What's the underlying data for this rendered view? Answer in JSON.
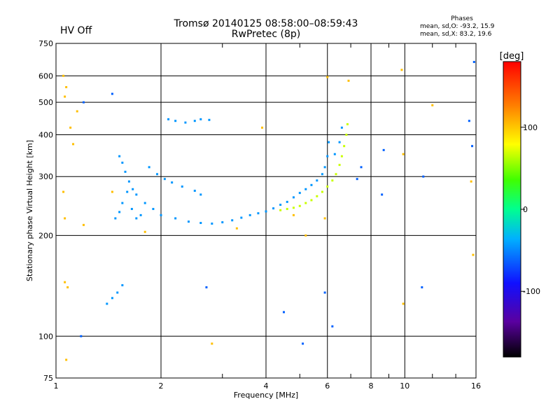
{
  "status": {
    "text": "HV Off",
    "color": "#cc0000"
  },
  "header": {
    "title": "Tromsø 20140125 08:58:00–08:59:43",
    "subtitle": "RwPretec (8p)"
  },
  "phases_box": {
    "title": "Phases",
    "line_o": "mean, sd,O: -93.2, 15.9",
    "line_x": "mean, sd,X: 83.2, 19.6"
  },
  "chart_data": {
    "type": "scatter",
    "xlabel": "Frequency [MHz]",
    "ylabel": "Stationary phase Virtual Height [km]",
    "x_scale": "log",
    "y_scale": "log",
    "xlim": [
      1,
      16
    ],
    "ylim": [
      75,
      750
    ],
    "x_ticks": [
      1,
      2,
      4,
      6,
      8,
      10,
      16
    ],
    "x_tick_labels": [
      "1",
      "2",
      "4",
      "6",
      "8",
      "10",
      "16"
    ],
    "y_ticks": [
      75,
      100,
      200,
      300,
      400,
      500,
      600,
      750
    ],
    "y_tick_labels": [
      "75",
      "100",
      "200",
      "300",
      "400",
      "500",
      "600",
      "750"
    ],
    "grid": true,
    "colorbar": {
      "label": "[deg]",
      "range": [
        -180,
        180
      ],
      "ticks": [
        100,
        0,
        -100
      ],
      "tick_labels": [
        "100",
        "0",
        "-100"
      ]
    },
    "series": [
      {
        "values_description": "O-mode trace",
        "color_phase_deg": -93,
        "points": [
          [
            1.4,
            125
          ],
          [
            1.45,
            130
          ],
          [
            1.5,
            135
          ],
          [
            1.55,
            142
          ],
          [
            1.48,
            225
          ],
          [
            1.52,
            235
          ],
          [
            1.55,
            250
          ],
          [
            1.6,
            270
          ],
          [
            1.65,
            240
          ],
          [
            1.7,
            225
          ],
          [
            1.75,
            230
          ],
          [
            1.52,
            345
          ],
          [
            1.55,
            330
          ],
          [
            1.58,
            310
          ],
          [
            1.62,
            290
          ],
          [
            1.66,
            275
          ],
          [
            1.7,
            265
          ],
          [
            1.8,
            250
          ],
          [
            1.9,
            240
          ],
          [
            2.0,
            230
          ],
          [
            2.2,
            225
          ],
          [
            2.4,
            220
          ],
          [
            2.6,
            218
          ],
          [
            2.8,
            217
          ],
          [
            3.0,
            219
          ],
          [
            3.2,
            222
          ],
          [
            3.4,
            226
          ],
          [
            3.6,
            230
          ],
          [
            3.8,
            233
          ],
          [
            4.0,
            236
          ],
          [
            4.2,
            241
          ],
          [
            4.4,
            247
          ],
          [
            4.6,
            252
          ],
          [
            4.8,
            260
          ],
          [
            5.0,
            268
          ],
          [
            5.2,
            275
          ],
          [
            5.4,
            283
          ],
          [
            5.6,
            292
          ],
          [
            5.8,
            305
          ],
          [
            5.9,
            320
          ],
          [
            6.0,
            345
          ],
          [
            6.05,
            380
          ],
          [
            1.85,
            320
          ],
          [
            1.95,
            305
          ],
          [
            2.05,
            295
          ],
          [
            2.15,
            288
          ],
          [
            2.3,
            280
          ],
          [
            2.5,
            272
          ],
          [
            2.6,
            265
          ],
          [
            2.1,
            445
          ],
          [
            2.2,
            440
          ],
          [
            2.35,
            435
          ],
          [
            2.5,
            440
          ],
          [
            2.6,
            445
          ],
          [
            2.75,
            443
          ],
          [
            6.3,
            350
          ],
          [
            6.5,
            380
          ],
          [
            6.6,
            420
          ]
        ]
      },
      {
        "values_description": "X-mode trace",
        "color_phase_deg": 83,
        "points": [
          [
            4.4,
            238
          ],
          [
            4.6,
            240
          ],
          [
            4.8,
            242
          ],
          [
            5.0,
            245
          ],
          [
            5.2,
            250
          ],
          [
            5.4,
            255
          ],
          [
            5.6,
            262
          ],
          [
            5.8,
            270
          ],
          [
            6.0,
            280
          ],
          [
            6.2,
            292
          ],
          [
            6.35,
            305
          ],
          [
            6.5,
            325
          ],
          [
            6.6,
            345
          ],
          [
            6.7,
            370
          ],
          [
            6.8,
            400
          ],
          [
            6.85,
            430
          ]
        ]
      },
      {
        "values_description": "scattered noise",
        "color_phase_deg": 120,
        "points": [
          [
            1.05,
            600
          ],
          [
            1.07,
            555
          ],
          [
            1.06,
            520
          ],
          [
            1.1,
            420
          ],
          [
            1.05,
            270
          ],
          [
            1.06,
            225
          ],
          [
            1.06,
            145
          ],
          [
            1.08,
            140
          ],
          [
            1.07,
            85
          ],
          [
            1.12,
            375
          ],
          [
            1.15,
            470
          ],
          [
            1.2,
            215
          ],
          [
            1.45,
            270
          ],
          [
            1.8,
            205
          ],
          [
            3.3,
            210
          ],
          [
            4.8,
            230
          ],
          [
            5.9,
            225
          ],
          [
            6.0,
            595
          ],
          [
            6.9,
            580
          ],
          [
            9.8,
            625
          ],
          [
            9.9,
            350
          ],
          [
            12.0,
            490
          ],
          [
            15.5,
            290
          ],
          [
            3.9,
            420
          ],
          [
            2.8,
            95
          ],
          [
            9.9,
            125
          ],
          [
            5.2,
            200
          ],
          [
            15.7,
            175
          ]
        ]
      },
      {
        "values_description": "scattered noise (blue)",
        "color_phase_deg": -110,
        "points": [
          [
            1.2,
            500
          ],
          [
            1.45,
            530
          ],
          [
            2.7,
            140
          ],
          [
            4.5,
            118
          ],
          [
            5.9,
            135
          ],
          [
            6.2,
            107
          ],
          [
            7.3,
            295
          ],
          [
            8.6,
            265
          ],
          [
            11.2,
            140
          ],
          [
            11.3,
            300
          ],
          [
            15.3,
            440
          ],
          [
            15.6,
            370
          ],
          [
            15.8,
            660
          ],
          [
            1.18,
            100
          ],
          [
            5.1,
            95
          ],
          [
            7.5,
            320
          ],
          [
            8.7,
            360
          ]
        ]
      }
    ]
  }
}
